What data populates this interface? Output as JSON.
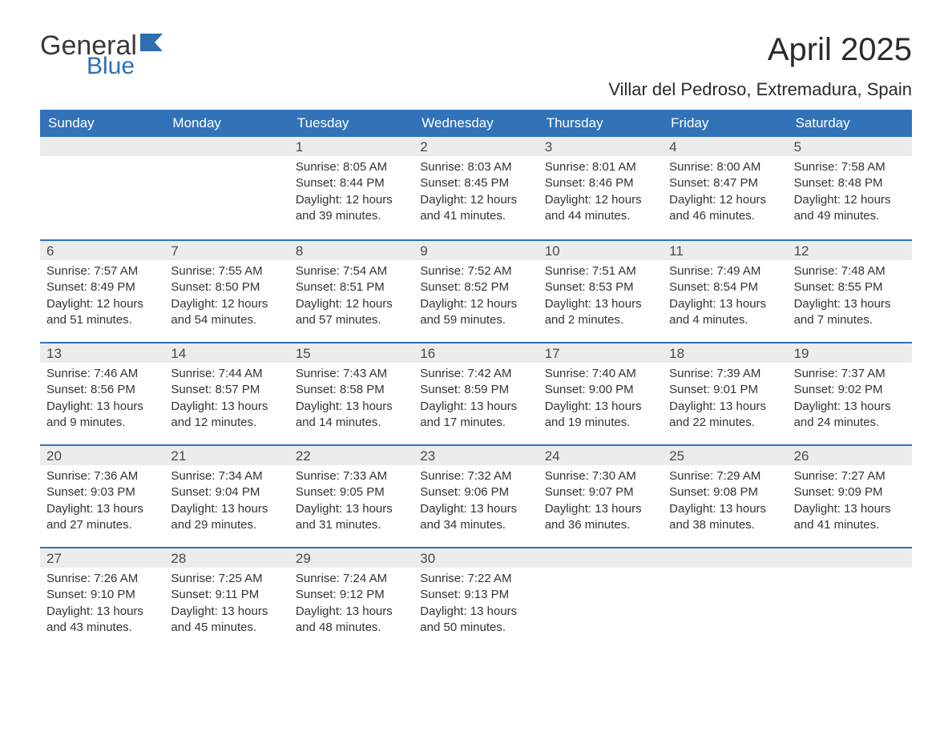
{
  "logo": {
    "general": "General",
    "blue": "Blue"
  },
  "title": "April 2025",
  "location": "Villar del Pedroso, Extremadura, Spain",
  "colors": {
    "header_bg": "#3273b8",
    "header_text": "#ffffff",
    "daynum_bg": "#ececec",
    "week_border": "#3273b8",
    "body_text": "#333333",
    "logo_blue": "#2f6fb0"
  },
  "day_labels": [
    "Sunday",
    "Monday",
    "Tuesday",
    "Wednesday",
    "Thursday",
    "Friday",
    "Saturday"
  ],
  "weeks": [
    [
      null,
      null,
      {
        "d": "1",
        "sr": "Sunrise: 8:05 AM",
        "ss": "Sunset: 8:44 PM",
        "dl1": "Daylight: 12 hours",
        "dl2": "and 39 minutes."
      },
      {
        "d": "2",
        "sr": "Sunrise: 8:03 AM",
        "ss": "Sunset: 8:45 PM",
        "dl1": "Daylight: 12 hours",
        "dl2": "and 41 minutes."
      },
      {
        "d": "3",
        "sr": "Sunrise: 8:01 AM",
        "ss": "Sunset: 8:46 PM",
        "dl1": "Daylight: 12 hours",
        "dl2": "and 44 minutes."
      },
      {
        "d": "4",
        "sr": "Sunrise: 8:00 AM",
        "ss": "Sunset: 8:47 PM",
        "dl1": "Daylight: 12 hours",
        "dl2": "and 46 minutes."
      },
      {
        "d": "5",
        "sr": "Sunrise: 7:58 AM",
        "ss": "Sunset: 8:48 PM",
        "dl1": "Daylight: 12 hours",
        "dl2": "and 49 minutes."
      }
    ],
    [
      {
        "d": "6",
        "sr": "Sunrise: 7:57 AM",
        "ss": "Sunset: 8:49 PM",
        "dl1": "Daylight: 12 hours",
        "dl2": "and 51 minutes."
      },
      {
        "d": "7",
        "sr": "Sunrise: 7:55 AM",
        "ss": "Sunset: 8:50 PM",
        "dl1": "Daylight: 12 hours",
        "dl2": "and 54 minutes."
      },
      {
        "d": "8",
        "sr": "Sunrise: 7:54 AM",
        "ss": "Sunset: 8:51 PM",
        "dl1": "Daylight: 12 hours",
        "dl2": "and 57 minutes."
      },
      {
        "d": "9",
        "sr": "Sunrise: 7:52 AM",
        "ss": "Sunset: 8:52 PM",
        "dl1": "Daylight: 12 hours",
        "dl2": "and 59 minutes."
      },
      {
        "d": "10",
        "sr": "Sunrise: 7:51 AM",
        "ss": "Sunset: 8:53 PM",
        "dl1": "Daylight: 13 hours",
        "dl2": "and 2 minutes."
      },
      {
        "d": "11",
        "sr": "Sunrise: 7:49 AM",
        "ss": "Sunset: 8:54 PM",
        "dl1": "Daylight: 13 hours",
        "dl2": "and 4 minutes."
      },
      {
        "d": "12",
        "sr": "Sunrise: 7:48 AM",
        "ss": "Sunset: 8:55 PM",
        "dl1": "Daylight: 13 hours",
        "dl2": "and 7 minutes."
      }
    ],
    [
      {
        "d": "13",
        "sr": "Sunrise: 7:46 AM",
        "ss": "Sunset: 8:56 PM",
        "dl1": "Daylight: 13 hours",
        "dl2": "and 9 minutes."
      },
      {
        "d": "14",
        "sr": "Sunrise: 7:44 AM",
        "ss": "Sunset: 8:57 PM",
        "dl1": "Daylight: 13 hours",
        "dl2": "and 12 minutes."
      },
      {
        "d": "15",
        "sr": "Sunrise: 7:43 AM",
        "ss": "Sunset: 8:58 PM",
        "dl1": "Daylight: 13 hours",
        "dl2": "and 14 minutes."
      },
      {
        "d": "16",
        "sr": "Sunrise: 7:42 AM",
        "ss": "Sunset: 8:59 PM",
        "dl1": "Daylight: 13 hours",
        "dl2": "and 17 minutes."
      },
      {
        "d": "17",
        "sr": "Sunrise: 7:40 AM",
        "ss": "Sunset: 9:00 PM",
        "dl1": "Daylight: 13 hours",
        "dl2": "and 19 minutes."
      },
      {
        "d": "18",
        "sr": "Sunrise: 7:39 AM",
        "ss": "Sunset: 9:01 PM",
        "dl1": "Daylight: 13 hours",
        "dl2": "and 22 minutes."
      },
      {
        "d": "19",
        "sr": "Sunrise: 7:37 AM",
        "ss": "Sunset: 9:02 PM",
        "dl1": "Daylight: 13 hours",
        "dl2": "and 24 minutes."
      }
    ],
    [
      {
        "d": "20",
        "sr": "Sunrise: 7:36 AM",
        "ss": "Sunset: 9:03 PM",
        "dl1": "Daylight: 13 hours",
        "dl2": "and 27 minutes."
      },
      {
        "d": "21",
        "sr": "Sunrise: 7:34 AM",
        "ss": "Sunset: 9:04 PM",
        "dl1": "Daylight: 13 hours",
        "dl2": "and 29 minutes."
      },
      {
        "d": "22",
        "sr": "Sunrise: 7:33 AM",
        "ss": "Sunset: 9:05 PM",
        "dl1": "Daylight: 13 hours",
        "dl2": "and 31 minutes."
      },
      {
        "d": "23",
        "sr": "Sunrise: 7:32 AM",
        "ss": "Sunset: 9:06 PM",
        "dl1": "Daylight: 13 hours",
        "dl2": "and 34 minutes."
      },
      {
        "d": "24",
        "sr": "Sunrise: 7:30 AM",
        "ss": "Sunset: 9:07 PM",
        "dl1": "Daylight: 13 hours",
        "dl2": "and 36 minutes."
      },
      {
        "d": "25",
        "sr": "Sunrise: 7:29 AM",
        "ss": "Sunset: 9:08 PM",
        "dl1": "Daylight: 13 hours",
        "dl2": "and 38 minutes."
      },
      {
        "d": "26",
        "sr": "Sunrise: 7:27 AM",
        "ss": "Sunset: 9:09 PM",
        "dl1": "Daylight: 13 hours",
        "dl2": "and 41 minutes."
      }
    ],
    [
      {
        "d": "27",
        "sr": "Sunrise: 7:26 AM",
        "ss": "Sunset: 9:10 PM",
        "dl1": "Daylight: 13 hours",
        "dl2": "and 43 minutes."
      },
      {
        "d": "28",
        "sr": "Sunrise: 7:25 AM",
        "ss": "Sunset: 9:11 PM",
        "dl1": "Daylight: 13 hours",
        "dl2": "and 45 minutes."
      },
      {
        "d": "29",
        "sr": "Sunrise: 7:24 AM",
        "ss": "Sunset: 9:12 PM",
        "dl1": "Daylight: 13 hours",
        "dl2": "and 48 minutes."
      },
      {
        "d": "30",
        "sr": "Sunrise: 7:22 AM",
        "ss": "Sunset: 9:13 PM",
        "dl1": "Daylight: 13 hours",
        "dl2": "and 50 minutes."
      },
      null,
      null,
      null
    ]
  ]
}
